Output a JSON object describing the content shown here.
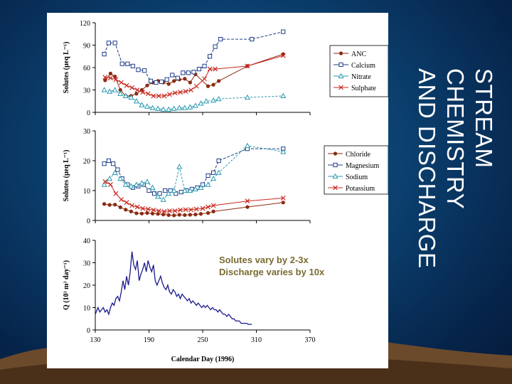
{
  "slide": {
    "title_line1": "STREAM CHEMISTRY",
    "title_line2": "AND DISCHARGE",
    "callout_line1": "Solutes vary by 2-3x",
    "callout_line2": "Discharge varies by 10x",
    "title_color": "#ffffff"
  },
  "chart_data": [
    {
      "type": "line",
      "ylabel": "Solutes (μeq L⁻¹)",
      "ylim": [
        0,
        120
      ],
      "yticks": [
        "0",
        "30",
        "60",
        "90",
        "120"
      ],
      "xlim": [
        130,
        370
      ],
      "series": [
        {
          "name": "ANC",
          "color": "#8b2a12",
          "marker": "dot",
          "x": [
            141,
            147,
            152,
            158,
            164,
            170,
            176,
            182,
            188,
            194,
            200,
            206,
            212,
            218,
            224,
            230,
            236,
            242,
            256,
            262,
            268,
            300,
            340
          ],
          "y": [
            43,
            52,
            48,
            30,
            22,
            22,
            25,
            30,
            36,
            40,
            42,
            40,
            38,
            42,
            44,
            45,
            40,
            51,
            35,
            37,
            42,
            62,
            78
          ]
        },
        {
          "name": "Calcium",
          "color": "#1f3c88",
          "marker": "square",
          "x": [
            140,
            145,
            152,
            160,
            166,
            172,
            178,
            185,
            192,
            198,
            204,
            210,
            216,
            222,
            228,
            234,
            240,
            246,
            252,
            258,
            264,
            270,
            305,
            340
          ],
          "y": [
            78,
            93,
            93,
            65,
            65,
            62,
            57,
            56,
            42,
            40,
            41,
            44,
            50,
            46,
            53,
            53,
            54,
            58,
            62,
            75,
            88,
            98,
            98,
            108
          ]
        },
        {
          "name": "Nitrate",
          "color": "#2a9ab0",
          "marker": "triangle",
          "x": [
            140,
            146,
            152,
            158,
            164,
            170,
            176,
            182,
            188,
            194,
            200,
            206,
            212,
            218,
            224,
            230,
            236,
            242,
            248,
            254,
            262,
            268,
            300,
            340
          ],
          "y": [
            30,
            28,
            30,
            25,
            22,
            20,
            15,
            10,
            8,
            6,
            5,
            4,
            4,
            5,
            6,
            6,
            7,
            9,
            12,
            15,
            16,
            18,
            20,
            22
          ]
        },
        {
          "name": "Sulphate",
          "color": "#c8281e",
          "marker": "x",
          "x": [
            141,
            147,
            153,
            159,
            165,
            171,
            177,
            183,
            189,
            195,
            201,
            207,
            213,
            219,
            225,
            231,
            237,
            243,
            252,
            258,
            264,
            300,
            340
          ],
          "y": [
            47,
            46,
            44,
            40,
            36,
            33,
            30,
            27,
            25,
            22,
            22,
            22,
            24,
            26,
            27,
            28,
            30,
            35,
            45,
            58,
            58,
            62,
            76
          ]
        }
      ]
    },
    {
      "type": "line",
      "ylabel": "Solutes (μeq L⁻¹)",
      "ylim": [
        0,
        30
      ],
      "yticks": [
        "0",
        "10",
        "20",
        "30"
      ],
      "xlim": [
        130,
        370
      ],
      "series": [
        {
          "name": "Chloride",
          "color": "#8b2a12",
          "marker": "dot",
          "x": [
            140,
            146,
            152,
            158,
            164,
            170,
            176,
            182,
            188,
            194,
            200,
            206,
            212,
            218,
            224,
            230,
            236,
            242,
            248,
            256,
            262,
            300,
            340
          ],
          "y": [
            5.5,
            5.2,
            5.3,
            4.4,
            3.6,
            3.0,
            2.4,
            2.3,
            2.5,
            2.3,
            2.2,
            2.0,
            1.8,
            1.7,
            1.9,
            1.8,
            1.9,
            2.0,
            2.2,
            2.5,
            3,
            4.5,
            6
          ]
        },
        {
          "name": "Magnesium",
          "color": "#1f3c88",
          "marker": "square",
          "x": [
            140,
            145,
            150,
            155,
            160,
            166,
            172,
            178,
            184,
            190,
            196,
            202,
            208,
            214,
            220,
            226,
            232,
            238,
            244,
            250,
            256,
            262,
            268,
            300,
            340
          ],
          "y": [
            19,
            20,
            19,
            17,
            14,
            12,
            11,
            11.5,
            12,
            10,
            9,
            9,
            10,
            10,
            9,
            9.5,
            10,
            10.5,
            11,
            12,
            15,
            16,
            20,
            24,
            24
          ]
        },
        {
          "name": "Sodium",
          "color": "#2a9ab0",
          "marker": "triangle",
          "x": [
            140,
            146,
            152,
            158,
            164,
            170,
            176,
            182,
            188,
            194,
            200,
            206,
            212,
            218,
            224,
            230,
            236,
            242,
            248,
            256,
            262,
            268,
            300,
            340
          ],
          "y": [
            12,
            14,
            16,
            14,
            12,
            11.5,
            12,
            12.5,
            13,
            11,
            8,
            7,
            9,
            10,
            18,
            10,
            10,
            10.5,
            11,
            12,
            14,
            16,
            25,
            23
          ]
        },
        {
          "name": "Potassium",
          "color": "#c8281e",
          "marker": "x",
          "x": [
            141,
            147,
            153,
            159,
            165,
            171,
            177,
            183,
            189,
            195,
            201,
            207,
            213,
            219,
            225,
            231,
            237,
            243,
            250,
            256,
            262,
            300,
            340
          ],
          "y": [
            13,
            12,
            9,
            7,
            6,
            5,
            4.5,
            4,
            3.8,
            3.5,
            3.2,
            3.0,
            3.2,
            3.2,
            3.5,
            3.6,
            3.6,
            3.8,
            4,
            4.5,
            5,
            6.5,
            7.5
          ]
        }
      ]
    },
    {
      "type": "line",
      "ylabel": "Q (10³ m³ day⁻¹)",
      "xlabel": "Calendar Day (1996)",
      "ylim": [
        0,
        40
      ],
      "yticks": [
        "0",
        "10",
        "20",
        "30",
        "40"
      ],
      "xlim": [
        130,
        370
      ],
      "xticks": [
        "130",
        "190",
        "250",
        "310",
        "370"
      ],
      "series": [
        {
          "name": "",
          "color": "#1a1a8c",
          "x": [
            130,
            133,
            135,
            137,
            139,
            141,
            143,
            145,
            147,
            149,
            151,
            153,
            155,
            157,
            159,
            161,
            163,
            165,
            167,
            169,
            171,
            173,
            175,
            177,
            179,
            181,
            183,
            185,
            187,
            189,
            191,
            193,
            195,
            197,
            199,
            201,
            203,
            205,
            207,
            209,
            211,
            213,
            215,
            217,
            219,
            221,
            223,
            225,
            227,
            229,
            231,
            233,
            235,
            237,
            239,
            241,
            243,
            245,
            247,
            249,
            251,
            253,
            255,
            257,
            259,
            261,
            263,
            265,
            267,
            269,
            271,
            273,
            275,
            277,
            279,
            281,
            283,
            285,
            287,
            289,
            291,
            293,
            295,
            297,
            299,
            301,
            303,
            305
          ],
          "y": [
            7,
            10,
            8,
            9,
            10,
            8,
            9,
            7,
            10,
            12,
            11,
            14,
            15,
            13,
            17,
            22,
            18,
            24,
            20,
            26,
            35,
            29,
            27,
            31,
            22,
            25,
            27,
            30,
            26,
            31,
            28,
            26,
            29,
            22,
            20,
            22,
            24,
            21,
            19,
            18,
            20,
            17,
            16,
            18,
            17,
            15,
            16,
            14,
            16,
            15,
            14,
            13,
            14,
            12,
            13,
            12,
            11,
            12,
            11,
            10,
            11,
            10,
            11,
            10,
            9,
            10,
            9,
            9,
            8,
            9,
            8,
            7,
            7,
            6,
            7,
            6,
            5,
            5,
            4,
            4,
            4,
            3,
            3,
            3,
            3,
            2.5,
            2.5,
            2.5
          ]
        }
      ]
    }
  ]
}
